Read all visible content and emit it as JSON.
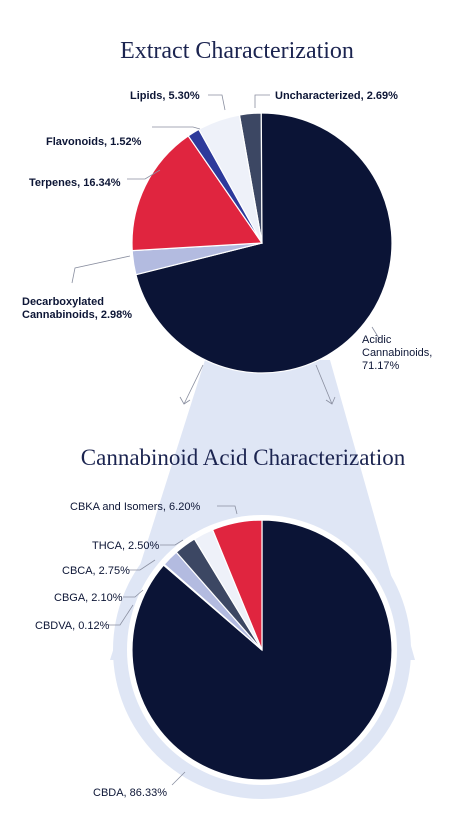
{
  "colors": {
    "navy": "#0b1436",
    "red": "#e0253f",
    "lavender": "#b3bbe0",
    "blue": "#2d3a9b",
    "pale": "#eef1f9",
    "slate": "#3c4763",
    "band": "#dfe6f5"
  },
  "chart_data": [
    {
      "type": "pie",
      "title": "Extract Characterization",
      "slices": [
        {
          "label": "Uncharacterized, 2.69%",
          "value": 2.69,
          "color": "#3c4763"
        },
        {
          "label": "Acidic Cannabinoids, 71.17%",
          "value": 71.17,
          "color": "#0b1436"
        },
        {
          "label": "Decarboxylated Cannabinoids, 2.98%",
          "value": 2.98,
          "color": "#b3bbe0"
        },
        {
          "label": "Terpenes, 16.34%",
          "value": 16.34,
          "color": "#e0253f"
        },
        {
          "label": "Flavonoids, 1.52%",
          "value": 1.52,
          "color": "#2d3a9b"
        },
        {
          "label": "Lipids, 5.30%",
          "value": 5.3,
          "color": "#eef1f9"
        }
      ]
    },
    {
      "type": "pie",
      "title": "Cannabinoid Acid Characterization",
      "slices": [
        {
          "label": "CBDA, 86.33%",
          "value": 86.33,
          "color": "#0b1436"
        },
        {
          "label": "CBDVA, 0.12%",
          "value": 0.12,
          "color": "#2d3a9b"
        },
        {
          "label": "CBGA, 2.10%",
          "value": 2.1,
          "color": "#b3bbe0"
        },
        {
          "label": "CBCA, 2.75%",
          "value": 2.75,
          "color": "#3c4763"
        },
        {
          "label": "THCA, 2.50%",
          "value": 2.5,
          "color": "#eef1f9"
        },
        {
          "label": "CBKA and Isomers, 6.20%",
          "value": 6.2,
          "color": "#e0253f"
        }
      ]
    }
  ]
}
